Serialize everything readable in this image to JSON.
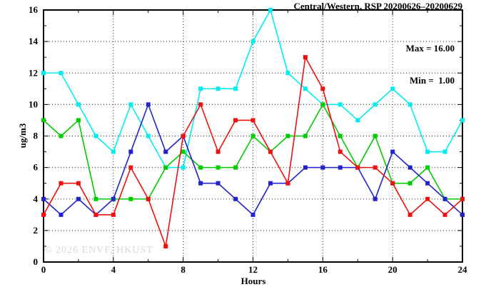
{
  "header": {
    "title": "Central/Western, RSP 20200626–20200629"
  },
  "stats": {
    "max_label": "Max = 16.00",
    "min_label": "Min =  1.00"
  },
  "watermark": "© 2026 ENVF, HKUST",
  "chart_data": {
    "type": "line",
    "title": "Central/Western, RSP 20200626–20200629",
    "xlabel": "Hours",
    "ylabel": "ug/m3",
    "xlim": [
      0,
      24
    ],
    "ylim": [
      0,
      16
    ],
    "x_major_ticks": [
      0,
      4,
      8,
      12,
      16,
      20,
      24
    ],
    "x_minor_ticks": [
      2,
      6,
      10,
      14,
      18,
      22
    ],
    "y_major_ticks": [
      0,
      2,
      4,
      6,
      8,
      10,
      12,
      14,
      16
    ],
    "y_minor_ticks": [
      1,
      3,
      5,
      7,
      9,
      11,
      13,
      15
    ],
    "grid": true,
    "max": 16.0,
    "min": 1.0,
    "x": [
      0,
      1,
      2,
      3,
      4,
      5,
      6,
      7,
      8,
      9,
      10,
      11,
      12,
      13,
      14,
      15,
      16,
      17,
      18,
      19,
      20,
      21,
      22,
      23,
      24
    ],
    "series": [
      {
        "name": "series-cyan",
        "color": "#00eeee",
        "values": [
          12,
          12,
          10,
          8,
          7,
          10,
          8,
          6,
          6,
          11,
          11,
          11,
          14,
          16,
          12,
          11,
          10,
          10,
          9,
          10,
          11,
          10,
          7,
          7,
          9
        ]
      },
      {
        "name": "series-green",
        "color": "#00cc00",
        "values": [
          9,
          8,
          9,
          4,
          4,
          4,
          4,
          6,
          7,
          6,
          6,
          6,
          8,
          7,
          8,
          8,
          10,
          8,
          6,
          8,
          5,
          5,
          6,
          4,
          4
        ]
      },
      {
        "name": "series-blue",
        "color": "#2222cc",
        "values": [
          4,
          3,
          4,
          3,
          4,
          7,
          10,
          7,
          8,
          5,
          5,
          4,
          3,
          5,
          5,
          6,
          6,
          6,
          6,
          4,
          7,
          6,
          5,
          4,
          3
        ]
      },
      {
        "name": "series-red",
        "color": "#ee1111",
        "values": [
          3,
          5,
          5,
          3,
          3,
          6,
          4,
          1,
          8,
          10,
          7,
          9,
          9,
          7,
          5,
          13,
          11,
          7,
          6,
          6,
          5,
          3,
          4,
          3,
          4
        ]
      }
    ]
  }
}
